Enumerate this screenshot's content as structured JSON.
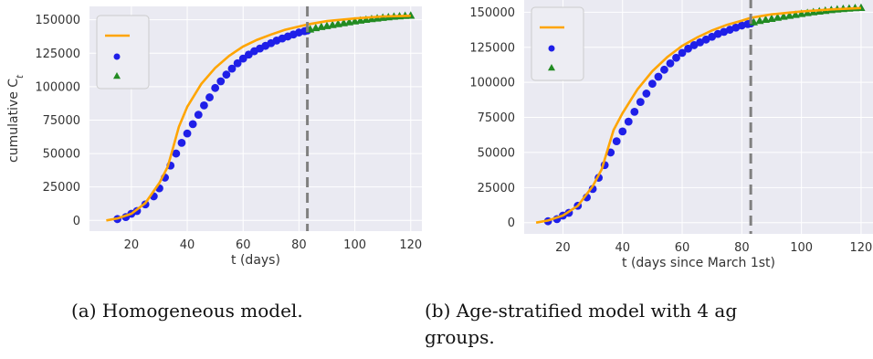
{
  "captions": {
    "a": "(a) Homogeneous model.",
    "b_line1": "(b)  Age-stratified  model  with  4  ag",
    "b_line2": "groups."
  },
  "colors": {
    "fit": "#FFA500",
    "data": "#1F1FE8",
    "projection": "#228B22",
    "cutoff": "#808080",
    "plot_bg": "#EAEAF2",
    "grid": "#FFFFFF"
  },
  "chart_data": [
    {
      "type": "line",
      "xlabel": "t (days)",
      "ylabel": "cumulative C_t",
      "xlim": [
        5,
        124
      ],
      "ylim": [
        -8000,
        160000
      ],
      "xticks": [
        20,
        40,
        60,
        80,
        100,
        120
      ],
      "yticks": [
        0,
        25000,
        50000,
        75000,
        100000,
        125000,
        150000
      ],
      "xtick_labels": [
        "20",
        "40",
        "60",
        "80",
        "100",
        "120"
      ],
      "ytick_labels": [
        "0",
        "25000",
        "50000",
        "75000",
        "100000",
        "125000",
        "150000"
      ],
      "grid": true,
      "legend": "top-left",
      "cutoff_x": 83,
      "series": [
        {
          "kind": "line",
          "marker": "none",
          "x": [
            11,
            15,
            20,
            25,
            30,
            33,
            35,
            37,
            40,
            45,
            50,
            55,
            60,
            65,
            70,
            75,
            80,
            83,
            90,
            100,
            110,
            120
          ],
          "y": [
            0,
            1500,
            5000,
            13000,
            28000,
            40000,
            55000,
            70000,
            85000,
            102000,
            114000,
            123000,
            130000,
            135000,
            139000,
            142500,
            145000,
            146500,
            149000,
            151000,
            152500,
            153000
          ]
        },
        {
          "kind": "scatter",
          "marker": "circle",
          "x": [
            15,
            18,
            20,
            22,
            25,
            28,
            30,
            32,
            34,
            36,
            38,
            40,
            42,
            44,
            46,
            48,
            50,
            52,
            54,
            56,
            58,
            60,
            62,
            64,
            66,
            68,
            70,
            72,
            74,
            76,
            78,
            80,
            82,
            83
          ],
          "y": [
            1000,
            2500,
            5000,
            7000,
            12000,
            18000,
            24000,
            32000,
            41000,
            50000,
            58000,
            65000,
            72000,
            79000,
            86000,
            92000,
            99000,
            104000,
            109000,
            113500,
            117500,
            121000,
            124000,
            126500,
            128500,
            130500,
            132500,
            134500,
            136000,
            137500,
            139000,
            140500,
            141500,
            142000
          ]
        },
        {
          "kind": "scatter",
          "marker": "triangle",
          "x": [
            84,
            86,
            88,
            90,
            92,
            94,
            96,
            98,
            100,
            102,
            104,
            106,
            108,
            110,
            112,
            114,
            116,
            118,
            120
          ],
          "y": [
            143000,
            144000,
            144800,
            145500,
            146300,
            147000,
            147700,
            148300,
            149000,
            149600,
            150200,
            150700,
            151200,
            151700,
            152100,
            152500,
            152800,
            153100,
            153300
          ]
        }
      ]
    },
    {
      "type": "line",
      "xlabel": "t (days since March 1st)",
      "ylabel": "",
      "xlim": [
        7,
        124
      ],
      "ylim": [
        -8000,
        160000
      ],
      "xticks": [
        20,
        40,
        60,
        80,
        100,
        120
      ],
      "yticks": [
        0,
        25000,
        50000,
        75000,
        100000,
        125000,
        150000
      ],
      "xtick_labels": [
        "20",
        "40",
        "60",
        "80",
        "100",
        "120"
      ],
      "ytick_labels": [
        "0",
        "25000",
        "50000",
        "75000",
        "100000",
        "125000",
        "150000"
      ],
      "grid": true,
      "legend": "top-left",
      "cutoff_x": 83,
      "series": [
        {
          "kind": "line",
          "marker": "none",
          "x": [
            11,
            15,
            20,
            25,
            30,
            33,
            35,
            37,
            40,
            45,
            50,
            55,
            60,
            65,
            70,
            75,
            80,
            83,
            90,
            100,
            110,
            120
          ],
          "y": [
            0,
            1500,
            5000,
            12000,
            26000,
            38000,
            52000,
            66000,
            78000,
            95000,
            108000,
            118000,
            126000,
            132000,
            137000,
            141000,
            144000,
            146000,
            148500,
            150500,
            152000,
            153000
          ]
        },
        {
          "kind": "scatter",
          "marker": "circle",
          "x": [
            15,
            18,
            20,
            22,
            25,
            28,
            30,
            32,
            34,
            36,
            38,
            40,
            42,
            44,
            46,
            48,
            50,
            52,
            54,
            56,
            58,
            60,
            62,
            64,
            66,
            68,
            70,
            72,
            74,
            76,
            78,
            80,
            82,
            83
          ],
          "y": [
            1000,
            2500,
            5000,
            7000,
            12000,
            18000,
            24000,
            32000,
            41000,
            50000,
            58000,
            65000,
            72000,
            79000,
            86000,
            92000,
            99000,
            104000,
            109000,
            113500,
            117500,
            121000,
            124000,
            126500,
            128500,
            130500,
            132500,
            134500,
            136000,
            137500,
            139000,
            140500,
            141500,
            142000
          ]
        },
        {
          "kind": "scatter",
          "marker": "triangle",
          "x": [
            84,
            86,
            88,
            90,
            92,
            94,
            96,
            98,
            100,
            102,
            104,
            106,
            108,
            110,
            112,
            114,
            116,
            118,
            120
          ],
          "y": [
            143000,
            144000,
            144800,
            145500,
            146300,
            147000,
            147700,
            148300,
            149000,
            149600,
            150200,
            150700,
            151200,
            151700,
            152100,
            152500,
            152800,
            153100,
            153300
          ]
        }
      ]
    }
  ]
}
